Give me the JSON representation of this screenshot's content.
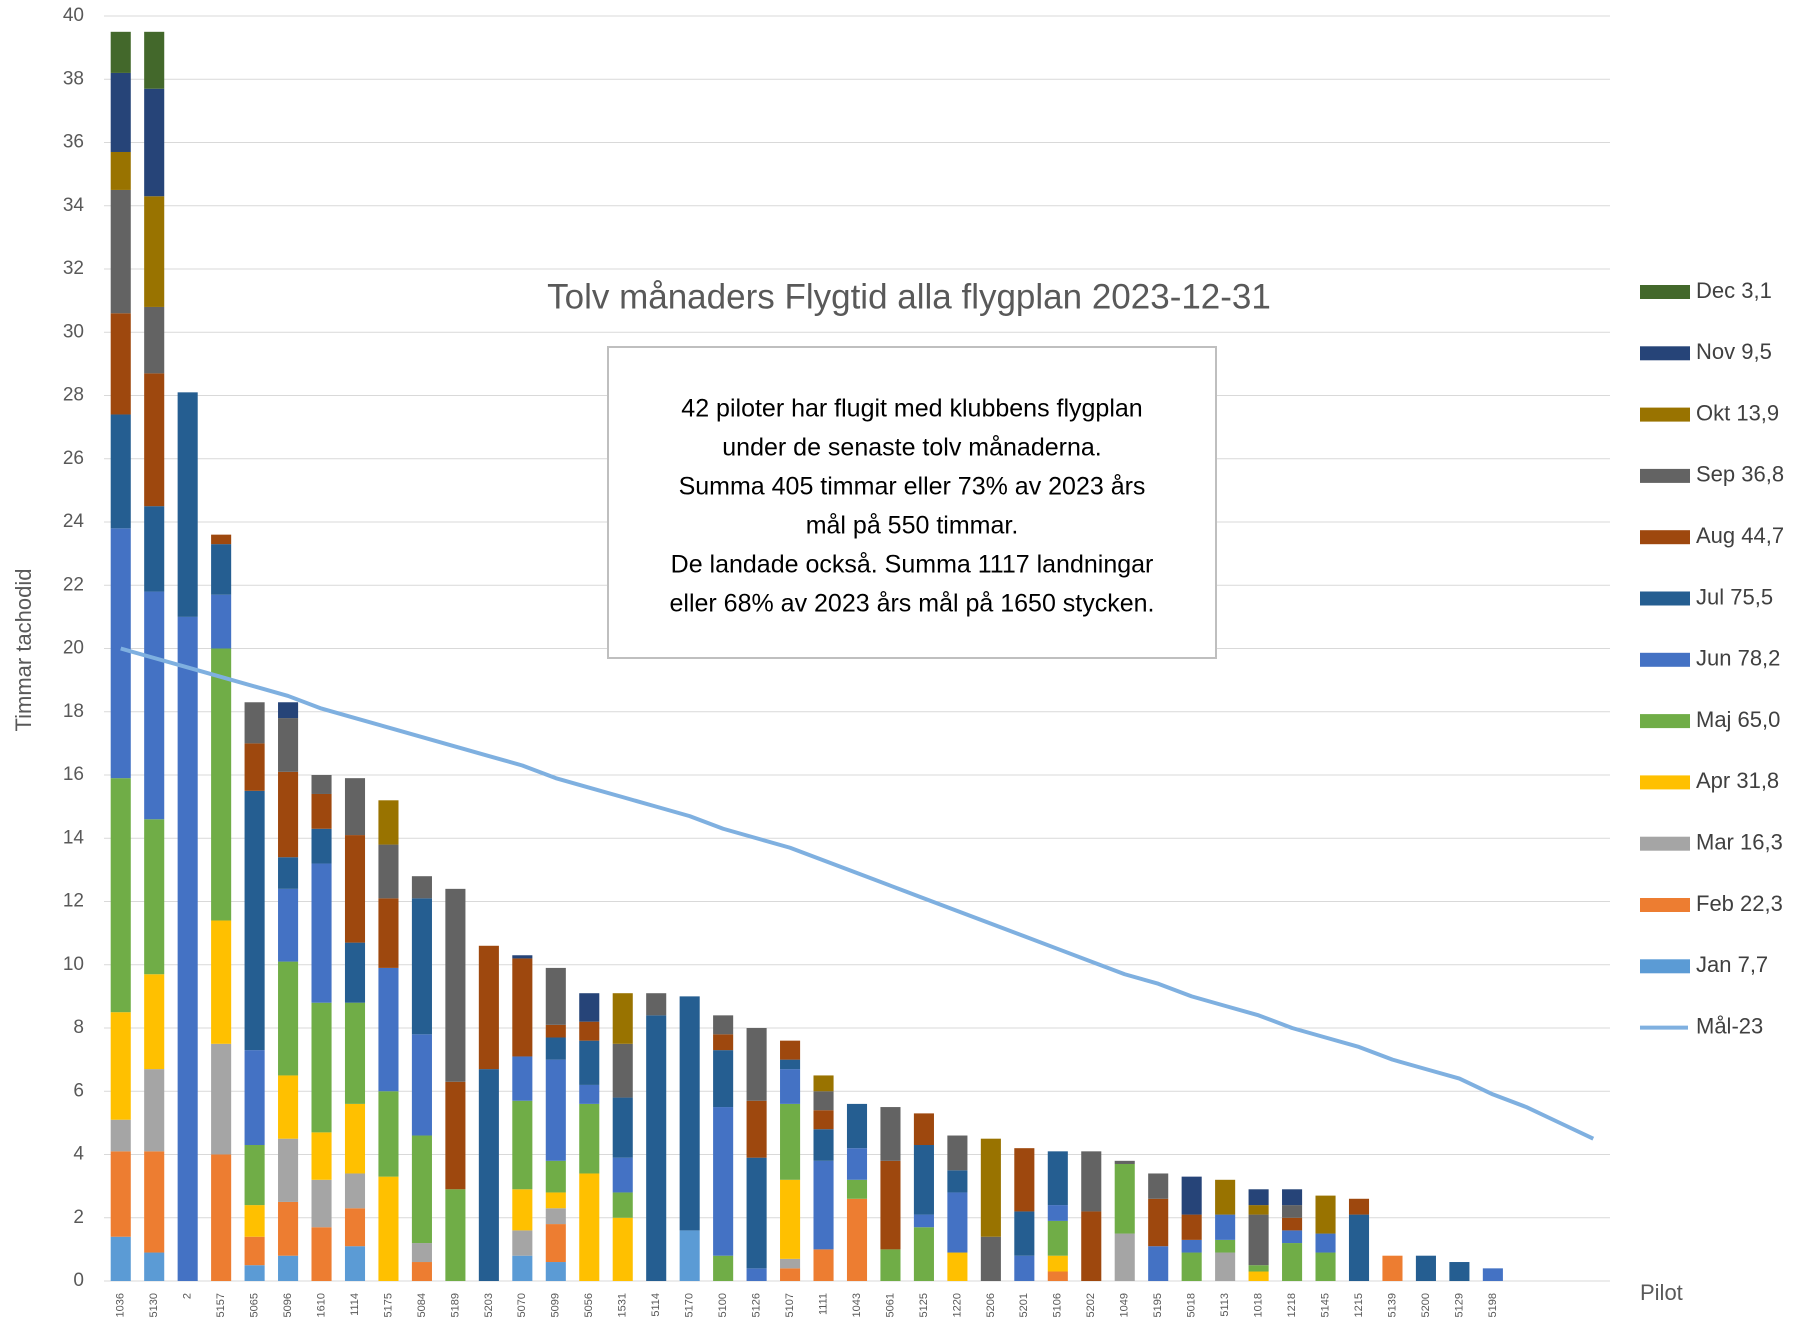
{
  "chart_data": {
    "type": "bar",
    "stacked": true,
    "title": "Tolv månaders  Flygtid alla flygplan 2023-12-31",
    "y_label": "Timmar tachodid",
    "x_label": "Pilot",
    "annotation": [
      "42 piloter har flugit med klubbens flygplan",
      "under de senaste tolv månaderna.",
      "Summa 405 timmar eller 73% av 2023 års",
      "mål på 550 timmar.",
      "De landade också. Summa 1117 landningar",
      "eller 68% av 2023 års mål på 1650 stycken."
    ],
    "ylim": [
      0,
      40
    ],
    "yticks": [
      0,
      2,
      4,
      6,
      8,
      10,
      12,
      14,
      16,
      18,
      20,
      22,
      24,
      26,
      28,
      30,
      32,
      34,
      36,
      38,
      40
    ],
    "grid": true,
    "legend": "right",
    "categories": [
      "1036",
      "5130",
      "2",
      "5157",
      "5065",
      "5096",
      "1610",
      "1114",
      "5175",
      "5084",
      "5189",
      "5203",
      "5070",
      "5099",
      "5056",
      "1531",
      "5114",
      "5170",
      "5100",
      "5126",
      "5107",
      "1111",
      "1043",
      "5061",
      "5125",
      "1220",
      "5206",
      "5201",
      "5106",
      "5202",
      "1049",
      "5195",
      "5018",
      "5113",
      "1018",
      "1218",
      "5145",
      "1215",
      "5139",
      "5200",
      "5129",
      "5198",
      null,
      null,
      null
    ],
    "series": [
      {
        "name": "Jan 7,7",
        "color": "#5b9bd5",
        "values": [
          1.4,
          0.9,
          0,
          0,
          0.5,
          0.8,
          0,
          1.1,
          0,
          0,
          0,
          0,
          0.8,
          0.6,
          0,
          0,
          0,
          1.6,
          0,
          0,
          0,
          0,
          0,
          0,
          0,
          0,
          0,
          0,
          0,
          0,
          0,
          0,
          0,
          0,
          0,
          0,
          0,
          0,
          0,
          0,
          0,
          0,
          null,
          null,
          null
        ]
      },
      {
        "name": "Feb 22,3",
        "color": "#ed7d31",
        "values": [
          2.7,
          3.2,
          0,
          4.0,
          0.9,
          1.7,
          1.7,
          1.2,
          0,
          0.6,
          0,
          0,
          0,
          1.2,
          0,
          0,
          0,
          0,
          0,
          0,
          0.4,
          1.0,
          2.6,
          0,
          0,
          0,
          0,
          0,
          0.3,
          0,
          0,
          0,
          0,
          0,
          0,
          0,
          0,
          0,
          0.8,
          0,
          0,
          0,
          null,
          null,
          null
        ]
      },
      {
        "name": "Mar 16,3",
        "color": "#a5a5a5",
        "values": [
          1.0,
          2.6,
          0,
          3.5,
          0,
          2.0,
          1.5,
          1.1,
          0,
          0.6,
          0,
          0,
          0.8,
          0.5,
          0,
          0,
          0,
          0,
          0,
          0,
          0.3,
          0,
          0,
          0,
          0,
          0,
          0,
          0,
          0,
          0,
          1.5,
          0,
          0,
          0.9,
          0,
          0,
          0,
          0,
          0,
          0,
          0,
          0,
          null,
          null,
          null
        ]
      },
      {
        "name": "Apr 31,8",
        "color": "#ffc000",
        "values": [
          3.4,
          3.0,
          0,
          3.9,
          1.0,
          2.0,
          1.5,
          2.2,
          3.3,
          0,
          0,
          0,
          1.3,
          0.5,
          3.4,
          2.0,
          0,
          0,
          0,
          0,
          2.5,
          0,
          0,
          0,
          0,
          0.9,
          0,
          0,
          0.5,
          0,
          0,
          0,
          0,
          0,
          0.3,
          0,
          0,
          0,
          0,
          0,
          0,
          0,
          null,
          null,
          null
        ]
      },
      {
        "name": "Maj 65,0",
        "color": "#70ad47",
        "values": [
          7.4,
          4.9,
          0,
          8.6,
          1.9,
          3.6,
          4.1,
          3.2,
          2.7,
          3.4,
          2.9,
          0,
          2.8,
          1.0,
          2.2,
          0.8,
          0,
          0,
          0.8,
          0,
          2.4,
          0,
          0.6,
          1.0,
          1.7,
          0,
          0,
          0,
          1.1,
          0,
          2.2,
          0,
          0.9,
          0.4,
          0.2,
          1.2,
          0.9,
          0,
          0,
          0,
          0,
          0,
          null,
          null,
          null
        ]
      },
      {
        "name": "Jun 78,2",
        "color": "#4472c4",
        "values": [
          7.9,
          7.2,
          21.0,
          1.7,
          3.0,
          2.3,
          4.4,
          0,
          3.9,
          3.2,
          0,
          0,
          1.4,
          3.2,
          0.6,
          1.1,
          0,
          0,
          4.7,
          0.4,
          1.1,
          2.8,
          1.0,
          0,
          0.4,
          1.9,
          0,
          0.8,
          0.5,
          0,
          0,
          1.1,
          0.4,
          0.8,
          0,
          0.4,
          0.6,
          0,
          0,
          0,
          0,
          0.4,
          null,
          null,
          null
        ]
      },
      {
        "name": "Jul 75,5",
        "color": "#255e91",
        "values": [
          3.6,
          2.7,
          7.1,
          1.6,
          8.2,
          1.0,
          1.1,
          1.9,
          0,
          4.3,
          0,
          6.7,
          0,
          0.7,
          1.4,
          1.9,
          8.4,
          7.4,
          1.8,
          3.5,
          0.3,
          1.0,
          1.4,
          0,
          2.2,
          0.7,
          0,
          1.4,
          1.7,
          0,
          0,
          0,
          0,
          0,
          0,
          0,
          0,
          2.1,
          0,
          0.8,
          0.6,
          0,
          null,
          null,
          null
        ]
      },
      {
        "name": "Aug 44,7",
        "color": "#9e480e",
        "values": [
          3.2,
          4.2,
          0,
          0.3,
          1.5,
          2.7,
          1.1,
          3.4,
          2.2,
          0,
          3.4,
          3.9,
          3.1,
          0.4,
          0.6,
          0,
          0,
          0,
          0.5,
          1.8,
          0.6,
          0.6,
          0,
          2.8,
          1.0,
          0,
          0,
          2.0,
          0,
          2.2,
          0,
          1.5,
          0.8,
          0,
          0,
          0.4,
          0,
          0.5,
          0,
          0,
          0,
          0,
          null,
          null,
          null
        ]
      },
      {
        "name": "Sep 36,8",
        "color": "#636363",
        "values": [
          3.9,
          2.1,
          0,
          0,
          1.3,
          1.7,
          0.6,
          1.8,
          1.7,
          0.7,
          6.1,
          0,
          0,
          1.8,
          0,
          1.7,
          0.7,
          0,
          0.6,
          2.3,
          0,
          0.6,
          0,
          1.7,
          0,
          1.1,
          1.4,
          0,
          0,
          1.9,
          0.1,
          0.8,
          0,
          0,
          1.6,
          0.4,
          0,
          0,
          0,
          0,
          0,
          0,
          null,
          null,
          null
        ]
      },
      {
        "name": "Okt 13,9",
        "color": "#997300",
        "values": [
          1.2,
          3.5,
          0,
          0,
          0,
          0,
          0,
          0,
          1.4,
          0,
          0,
          0,
          0,
          0,
          0,
          1.6,
          0,
          0,
          0,
          0,
          0,
          0.5,
          0,
          0,
          0,
          0,
          3.1,
          0,
          0,
          0,
          0,
          0,
          0,
          1.1,
          0.3,
          0,
          1.2,
          0,
          0,
          0,
          0,
          0,
          null,
          null,
          null
        ]
      },
      {
        "name": "Nov 9,5",
        "color": "#264478",
        "values": [
          2.5,
          3.4,
          0,
          0,
          0,
          0.5,
          0,
          0,
          0,
          0,
          0,
          0,
          0.1,
          0,
          0.9,
          0,
          0,
          0,
          0,
          0,
          0,
          0,
          0,
          0,
          0,
          0,
          0,
          0,
          0,
          0,
          0,
          0,
          1.2,
          0,
          0.5,
          0.5,
          0,
          0,
          0,
          0,
          0,
          0,
          null,
          null,
          null
        ]
      },
      {
        "name": "Dec 3,1",
        "color": "#43682b",
        "values": [
          1.3,
          1.8,
          0,
          0,
          0,
          0,
          0,
          0,
          0,
          0,
          0,
          0,
          0,
          0,
          0,
          0,
          0,
          0,
          0,
          0,
          0,
          0,
          0,
          0,
          0,
          0,
          0,
          0,
          0,
          0,
          0,
          0,
          0,
          0,
          0,
          0,
          0,
          0,
          0,
          0,
          0,
          0,
          null,
          null,
          null
        ]
      },
      {
        "name": "Mål-23",
        "type": "line",
        "color": "#7fb0e0",
        "values": [
          20.0,
          19.7,
          19.4,
          19.1,
          18.8,
          18.5,
          18.1,
          17.8,
          17.5,
          17.2,
          16.9,
          16.6,
          16.3,
          15.9,
          15.6,
          15.3,
          15.0,
          14.7,
          14.3,
          14.0,
          13.7,
          13.3,
          12.9,
          12.5,
          12.1,
          11.7,
          11.3,
          10.9,
          10.5,
          10.1,
          9.7,
          9.4,
          9.0,
          8.7,
          8.4,
          8.0,
          7.7,
          7.4,
          7.0,
          6.7,
          6.4,
          5.9,
          5.5,
          5.0,
          4.5
        ]
      }
    ]
  }
}
